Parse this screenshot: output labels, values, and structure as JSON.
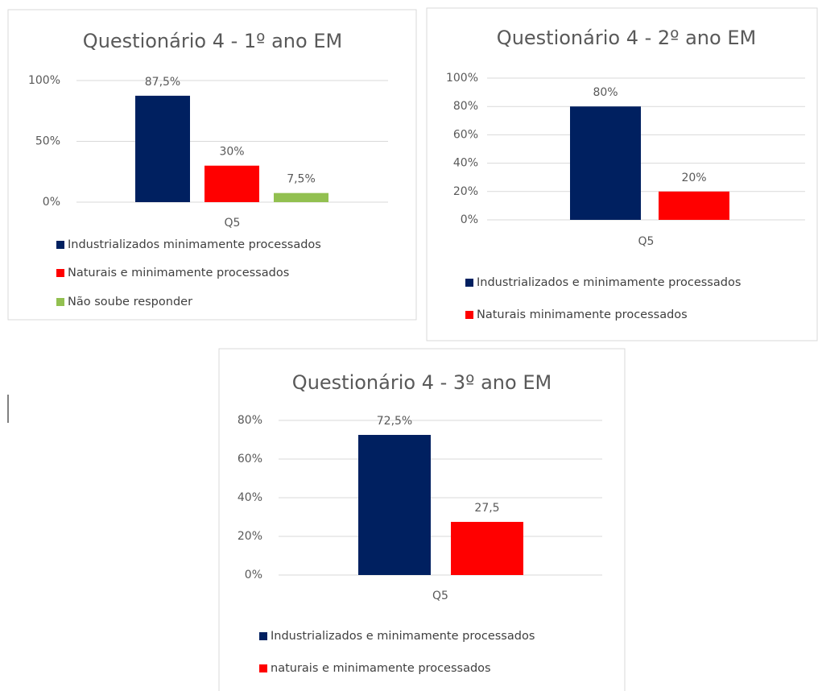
{
  "chart_data": [
    {
      "type": "bar",
      "title": "Questionário 4 - 1º ano EM",
      "categories": [
        "Q5"
      ],
      "series": [
        {
          "name": "Industrializados minimamente processados",
          "color": "#002060",
          "values": [
            87.5
          ],
          "value_labels": [
            "87,5%"
          ]
        },
        {
          "name": "Naturais e minimamente processados",
          "color": "#ff0000",
          "values": [
            30
          ],
          "value_labels": [
            "30%"
          ]
        },
        {
          "name": "Não soube responder",
          "color": "#92c050",
          "values": [
            7.5
          ],
          "value_labels": [
            "7,5%"
          ]
        }
      ],
      "ylim": [
        0,
        100
      ],
      "yticks": [
        {
          "value": 0,
          "label": "0%"
        },
        {
          "value": 50,
          "label": "50%"
        },
        {
          "value": 100,
          "label": "100%"
        }
      ],
      "grid": true
    },
    {
      "type": "bar",
      "title": "Questionário 4 - 2º ano EM",
      "categories": [
        "Q5"
      ],
      "series": [
        {
          "name": "Industrializados e minimamente processados",
          "color": "#002060",
          "values": [
            80
          ],
          "value_labels": [
            "80%"
          ]
        },
        {
          "name": "Naturais minimamente processados",
          "color": "#ff0000",
          "values": [
            20
          ],
          "value_labels": [
            "20%"
          ]
        }
      ],
      "ylim": [
        0,
        100
      ],
      "yticks": [
        {
          "value": 0,
          "label": "0%"
        },
        {
          "value": 20,
          "label": "20%"
        },
        {
          "value": 40,
          "label": "40%"
        },
        {
          "value": 60,
          "label": "60%"
        },
        {
          "value": 80,
          "label": "80%"
        },
        {
          "value": 100,
          "label": "100%"
        }
      ],
      "grid": true
    },
    {
      "type": "bar",
      "title": "Questionário 4 - 3º ano EM",
      "categories": [
        "Q5"
      ],
      "series": [
        {
          "name": "Industrializados e minimamente processados",
          "color": "#002060",
          "values": [
            72.5
          ],
          "value_labels": [
            "72,5%"
          ]
        },
        {
          "name": "naturais e minimamente processados",
          "color": "#ff0000",
          "values": [
            27.5
          ],
          "value_labels": [
            "27,5"
          ]
        }
      ],
      "ylim": [
        0,
        80
      ],
      "yticks": [
        {
          "value": 0,
          "label": "0%"
        },
        {
          "value": 20,
          "label": "20%"
        },
        {
          "value": 40,
          "label": "40%"
        },
        {
          "value": 60,
          "label": "60%"
        },
        {
          "value": 80,
          "label": "80%"
        }
      ],
      "grid": true
    }
  ]
}
